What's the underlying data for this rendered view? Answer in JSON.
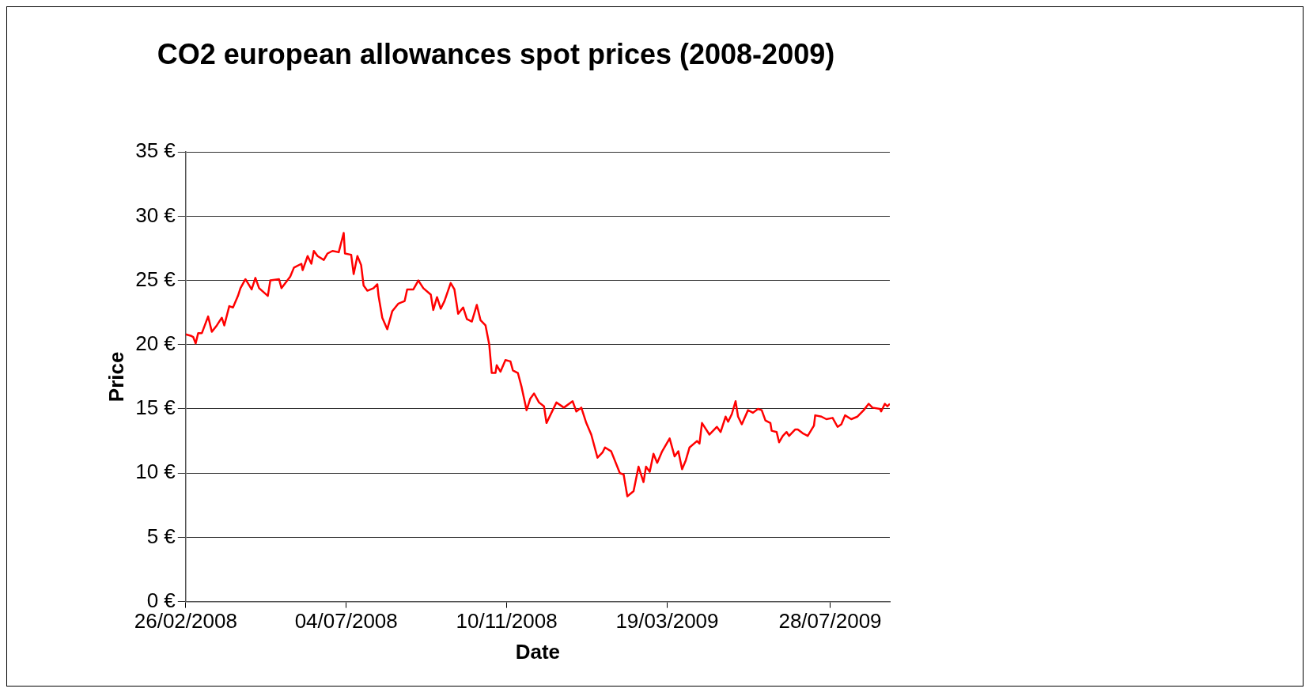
{
  "chart_data": {
    "type": "line",
    "title": "CO2 european allowances spot prices (2008-2009)",
    "xlabel": "Date",
    "ylabel": "Price",
    "x": [
      "2008-02-26",
      "2008-03-01",
      "2008-03-03",
      "2008-03-05",
      "2008-03-07",
      "2008-03-10",
      "2008-03-15",
      "2008-03-18",
      "2008-03-22",
      "2008-03-26",
      "2008-03-28",
      "2008-04-01",
      "2008-04-04",
      "2008-04-08",
      "2008-04-10",
      "2008-04-14",
      "2008-04-19",
      "2008-04-22",
      "2008-04-25",
      "2008-05-02",
      "2008-05-04",
      "2008-05-11",
      "2008-05-13",
      "2008-05-20",
      "2008-05-23",
      "2008-05-29",
      "2008-05-30",
      "2008-06-03",
      "2008-06-06",
      "2008-06-08",
      "2008-06-11",
      "2008-06-16",
      "2008-06-19",
      "2008-06-23",
      "2008-06-28",
      "2008-07-02",
      "2008-07-03",
      "2008-07-08",
      "2008-07-10",
      "2008-07-13",
      "2008-07-16",
      "2008-07-18",
      "2008-07-21",
      "2008-07-26",
      "2008-07-29",
      "2008-07-30",
      "2008-08-02",
      "2008-08-06",
      "2008-08-10",
      "2008-08-15",
      "2008-08-20",
      "2008-08-22",
      "2008-08-27",
      "2008-08-31",
      "2008-09-04",
      "2008-09-10",
      "2008-09-12",
      "2008-09-15",
      "2008-09-18",
      "2008-09-21",
      "2008-09-26",
      "2008-09-29",
      "2008-10-02",
      "2008-10-06",
      "2008-10-09",
      "2008-10-13",
      "2008-10-17",
      "2008-10-20",
      "2008-10-24",
      "2008-10-27",
      "2008-10-29",
      "2008-11-01",
      "2008-11-02",
      "2008-11-05",
      "2008-11-09",
      "2008-11-13",
      "2008-11-15",
      "2008-11-19",
      "2008-11-22",
      "2008-11-26",
      "2008-11-29",
      "2008-12-02",
      "2008-12-06",
      "2008-12-10",
      "2008-12-12",
      "2008-12-15",
      "2008-12-20",
      "2008-12-26",
      "2009-01-02",
      "2009-01-05",
      "2009-01-09",
      "2009-01-13",
      "2009-01-17",
      "2009-01-22",
      "2009-01-26",
      "2009-01-28",
      "2009-02-02",
      "2009-02-09",
      "2009-02-12",
      "2009-02-15",
      "2009-02-20",
      "2009-02-24",
      "2009-02-28",
      "2009-03-02",
      "2009-03-05",
      "2009-03-08",
      "2009-03-11",
      "2009-03-15",
      "2009-03-21",
      "2009-03-25",
      "2009-03-28",
      "2009-03-31",
      "2009-04-03",
      "2009-04-06",
      "2009-04-12",
      "2009-04-14",
      "2009-04-16",
      "2009-04-22",
      "2009-04-28",
      "2009-05-01",
      "2009-05-05",
      "2009-05-07",
      "2009-05-10",
      "2009-05-13",
      "2009-05-15",
      "2009-05-18",
      "2009-05-23",
      "2009-05-27",
      "2009-05-31",
      "2009-06-03",
      "2009-06-06",
      "2009-06-10",
      "2009-06-11",
      "2009-06-15",
      "2009-06-17",
      "2009-06-20",
      "2009-06-23",
      "2009-06-25",
      "2009-06-30",
      "2009-07-02",
      "2009-07-06",
      "2009-07-10",
      "2009-07-15",
      "2009-07-16",
      "2009-07-21",
      "2009-07-25",
      "2009-07-30",
      "2009-08-03",
      "2009-08-06",
      "2009-08-09",
      "2009-08-14",
      "2009-08-19",
      "2009-08-24",
      "2009-08-28",
      "2009-08-31",
      "2009-09-06",
      "2009-09-07",
      "2009-09-10",
      "2009-09-12",
      "2009-09-14"
    ],
    "series": [
      {
        "color": "#ff0000",
        "values": [
          20.8,
          20.7,
          20.6,
          20.1,
          20.9,
          20.9,
          22.2,
          21.0,
          21.5,
          22.1,
          21.5,
          23.0,
          22.9,
          23.8,
          24.4,
          25.1,
          24.3,
          25.2,
          24.4,
          23.8,
          25.0,
          25.1,
          24.4,
          25.3,
          26.0,
          26.3,
          25.8,
          26.9,
          26.3,
          27.3,
          26.9,
          26.6,
          27.1,
          27.3,
          27.2,
          28.7,
          27.1,
          27.0,
          25.5,
          26.9,
          26.2,
          24.6,
          24.2,
          24.4,
          24.7,
          23.8,
          22.1,
          21.2,
          22.6,
          23.2,
          23.4,
          24.3,
          24.3,
          25.0,
          24.4,
          23.9,
          22.7,
          23.7,
          22.8,
          23.4,
          24.8,
          24.3,
          22.4,
          22.9,
          22.0,
          21.8,
          23.1,
          21.9,
          21.5,
          20.0,
          17.8,
          17.8,
          18.4,
          17.9,
          18.8,
          18.7,
          18.0,
          17.8,
          16.7,
          14.9,
          15.8,
          16.2,
          15.5,
          15.2,
          13.9,
          14.5,
          15.5,
          15.1,
          15.6,
          14.8,
          15.1,
          13.9,
          13.0,
          11.2,
          11.6,
          12.0,
          11.7,
          10.0,
          9.9,
          8.2,
          8.6,
          10.5,
          9.3,
          10.5,
          10.1,
          11.5,
          10.8,
          11.7,
          12.7,
          11.3,
          11.7,
          10.3,
          11.0,
          12.0,
          12.5,
          12.3,
          13.9,
          13.0,
          13.6,
          13.2,
          14.4,
          14.0,
          14.6,
          15.6,
          14.4,
          13.8,
          14.9,
          14.7,
          15.0,
          14.9,
          14.1,
          13.9,
          13.3,
          13.2,
          12.4,
          12.9,
          13.2,
          12.9,
          13.4,
          13.4,
          13.1,
          12.9,
          13.7,
          14.5,
          14.4,
          14.2,
          14.3,
          13.6,
          13.8,
          14.5,
          14.2,
          14.4,
          14.9,
          15.4,
          15.1,
          15.0,
          14.8,
          15.4,
          15.2,
          15.4
        ]
      }
    ],
    "xlim": [
      "2008-02-26",
      "2009-09-14"
    ],
    "xticks": [
      {
        "value": "2008-02-26",
        "label": "26/02/2008"
      },
      {
        "value": "2008-07-04",
        "label": "04/07/2008"
      },
      {
        "value": "2008-11-10",
        "label": "10/11/2008"
      },
      {
        "value": "2009-03-19",
        "label": "19/03/2009"
      },
      {
        "value": "2009-07-28",
        "label": "28/07/2009"
      }
    ],
    "ylim": [
      0,
      35
    ],
    "yticks": [
      {
        "value": 0,
        "label": "0 €"
      },
      {
        "value": 5,
        "label": "5 €"
      },
      {
        "value": 10,
        "label": "10 €"
      },
      {
        "value": 15,
        "label": "15 €"
      },
      {
        "value": 20,
        "label": "20 €"
      },
      {
        "value": 25,
        "label": "25 €"
      },
      {
        "value": 30,
        "label": "30 €"
      },
      {
        "value": 35,
        "label": "35 €"
      }
    ],
    "grid": "y",
    "legend": false,
    "marker": "none",
    "line_style": "solid"
  }
}
